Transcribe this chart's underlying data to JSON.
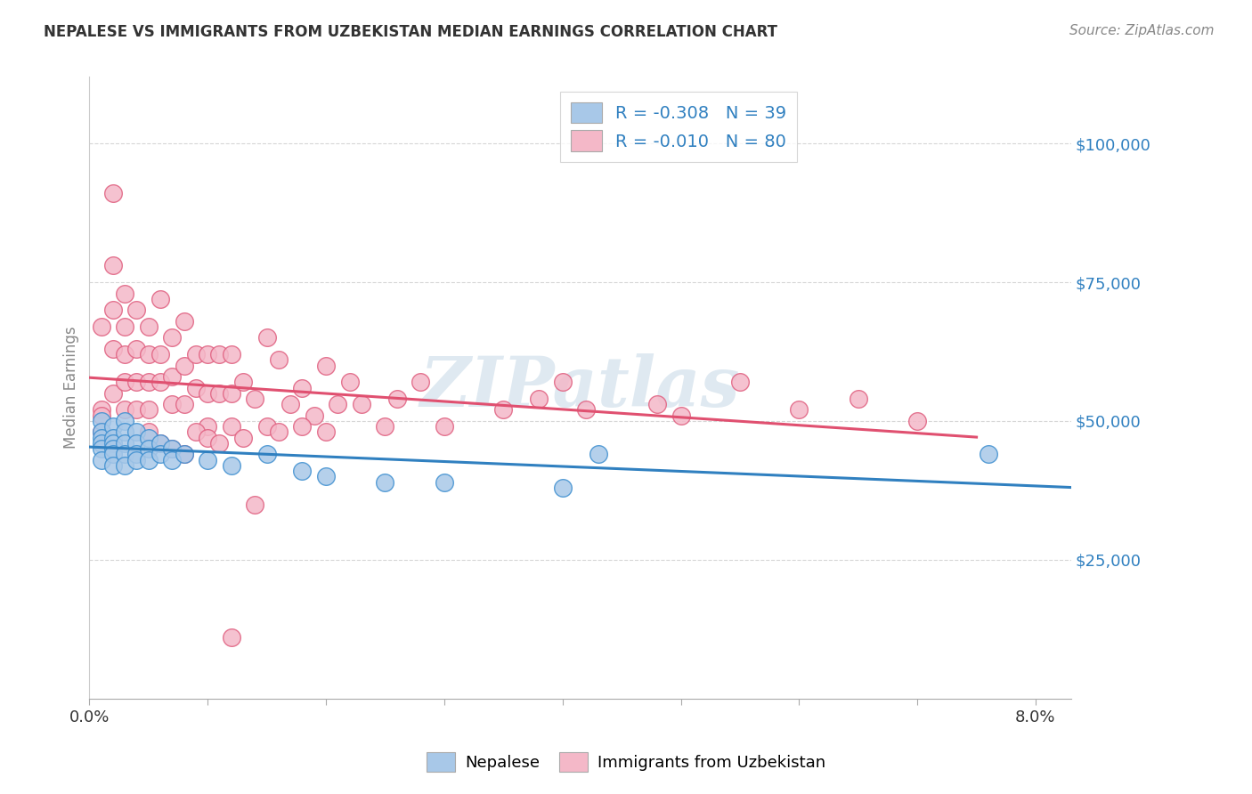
{
  "title": "NEPALESE VS IMMIGRANTS FROM UZBEKISTAN MEDIAN EARNINGS CORRELATION CHART",
  "source": "Source: ZipAtlas.com",
  "ylabel": "Median Earnings",
  "ytick_labels": [
    "$25,000",
    "$50,000",
    "$75,000",
    "$100,000"
  ],
  "ytick_values": [
    25000,
    50000,
    75000,
    100000
  ],
  "ylim": [
    0,
    112000
  ],
  "xlim": [
    0.0,
    0.083
  ],
  "watermark": "ZIPatlas",
  "legend_blue_r": "-0.308",
  "legend_blue_n": "39",
  "legend_pink_r": "-0.010",
  "legend_pink_n": "80",
  "legend_label_blue": "Nepalese",
  "legend_label_pink": "Immigrants from Uzbekistan",
  "blue_fill": "#a8c8e8",
  "pink_fill": "#f4b8c8",
  "blue_edge": "#4090d0",
  "pink_edge": "#e06080",
  "blue_line": "#3080c0",
  "pink_line": "#e05070",
  "background_color": "#ffffff",
  "grid_color": "#cccccc",
  "blue_scatter_x": [
    0.001,
    0.001,
    0.001,
    0.001,
    0.001,
    0.001,
    0.002,
    0.002,
    0.002,
    0.002,
    0.002,
    0.002,
    0.003,
    0.003,
    0.003,
    0.003,
    0.003,
    0.004,
    0.004,
    0.004,
    0.004,
    0.005,
    0.005,
    0.005,
    0.006,
    0.006,
    0.007,
    0.007,
    0.008,
    0.01,
    0.012,
    0.015,
    0.018,
    0.02,
    0.025,
    0.03,
    0.04,
    0.043,
    0.076
  ],
  "blue_scatter_y": [
    50000,
    48000,
    47000,
    46000,
    45000,
    43000,
    49000,
    47000,
    46000,
    45000,
    44000,
    42000,
    50000,
    48000,
    46000,
    44000,
    42000,
    48000,
    46000,
    44000,
    43000,
    47000,
    45000,
    43000,
    46000,
    44000,
    45000,
    43000,
    44000,
    43000,
    42000,
    44000,
    41000,
    40000,
    39000,
    39000,
    38000,
    44000,
    44000
  ],
  "pink_scatter_x": [
    0.001,
    0.001,
    0.001,
    0.001,
    0.002,
    0.002,
    0.002,
    0.002,
    0.002,
    0.003,
    0.003,
    0.003,
    0.003,
    0.003,
    0.004,
    0.004,
    0.004,
    0.004,
    0.005,
    0.005,
    0.005,
    0.005,
    0.006,
    0.006,
    0.006,
    0.007,
    0.007,
    0.007,
    0.008,
    0.008,
    0.008,
    0.009,
    0.009,
    0.01,
    0.01,
    0.01,
    0.011,
    0.011,
    0.012,
    0.012,
    0.012,
    0.013,
    0.013,
    0.014,
    0.015,
    0.015,
    0.016,
    0.017,
    0.018,
    0.019,
    0.02,
    0.021,
    0.022,
    0.023,
    0.025,
    0.026,
    0.028,
    0.03,
    0.035,
    0.038,
    0.04,
    0.042,
    0.048,
    0.05,
    0.055,
    0.06,
    0.065,
    0.07,
    0.005,
    0.006,
    0.007,
    0.008,
    0.009,
    0.01,
    0.011,
    0.012,
    0.014,
    0.016,
    0.018,
    0.02
  ],
  "pink_scatter_y": [
    67000,
    52000,
    51000,
    48000,
    91000,
    78000,
    70000,
    63000,
    55000,
    73000,
    67000,
    62000,
    57000,
    52000,
    70000,
    63000,
    57000,
    52000,
    67000,
    62000,
    57000,
    52000,
    72000,
    62000,
    57000,
    65000,
    58000,
    53000,
    68000,
    60000,
    53000,
    62000,
    56000,
    62000,
    55000,
    49000,
    62000,
    55000,
    62000,
    55000,
    49000,
    57000,
    47000,
    54000,
    65000,
    49000,
    61000,
    53000,
    56000,
    51000,
    60000,
    53000,
    57000,
    53000,
    49000,
    54000,
    57000,
    49000,
    52000,
    54000,
    57000,
    52000,
    53000,
    51000,
    57000,
    52000,
    54000,
    50000,
    48000,
    46000,
    45000,
    44000,
    48000,
    47000,
    46000,
    11000,
    35000,
    48000,
    49000,
    48000
  ]
}
